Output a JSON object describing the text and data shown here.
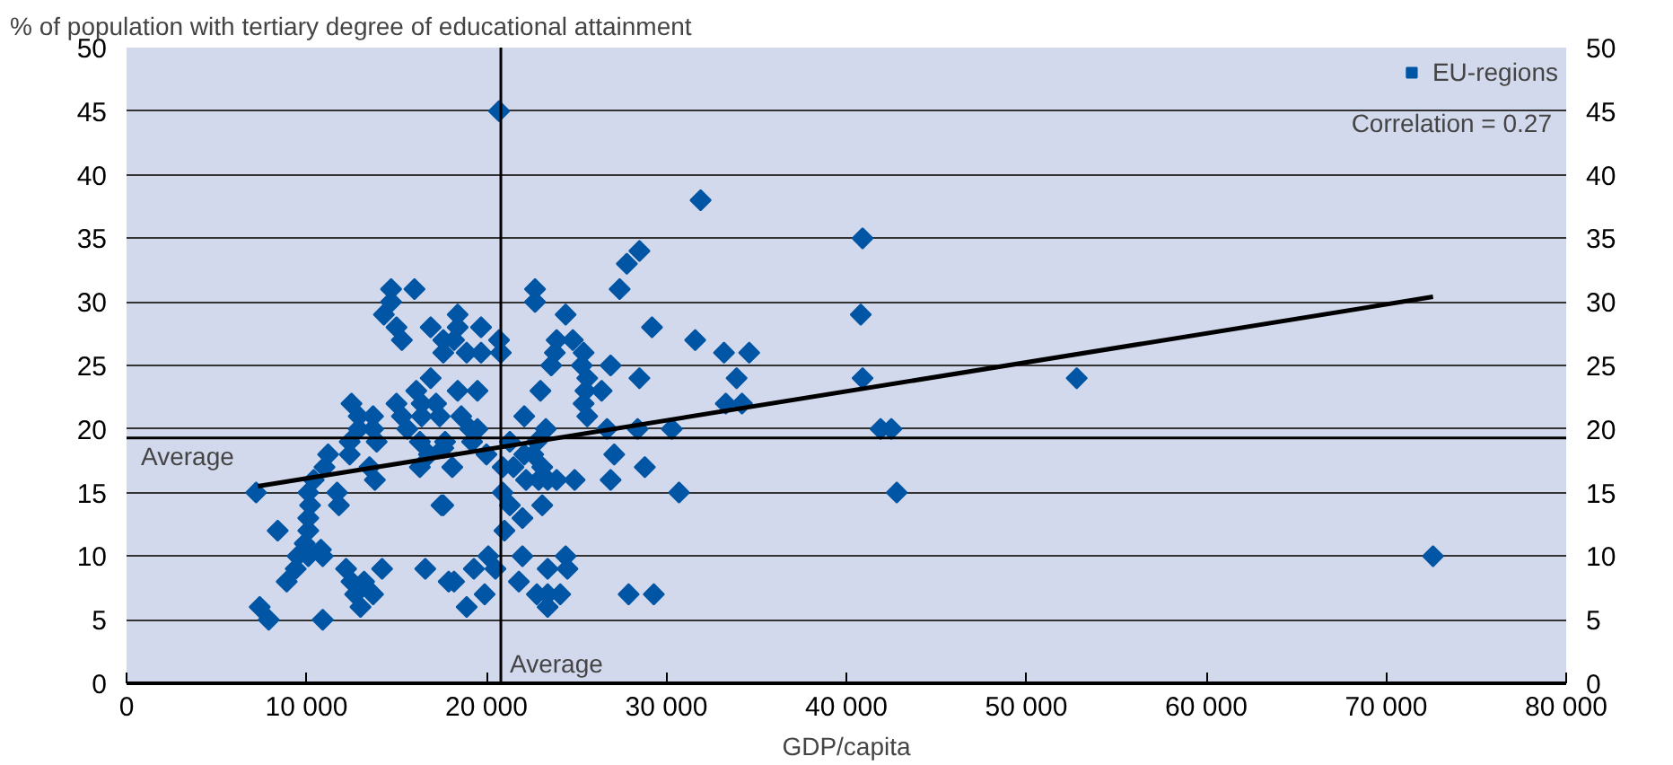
{
  "chart_data": {
    "type": "scatter",
    "ylabel": "% of population with tertiary degree of educational attainment",
    "xlabel": "GDP/capita",
    "xlim": [
      0,
      80000
    ],
    "ylim": [
      0,
      50
    ],
    "y2lim": [
      0,
      50
    ],
    "xticks": [
      0,
      {
        "value": 10000,
        "label": "10 000"
      },
      {
        "value": 20000,
        "label": "20 000"
      },
      {
        "value": 30000,
        "label": "30 000"
      },
      {
        "value": 40000,
        "label": "40 000"
      },
      {
        "value": 50000,
        "label": "50 000"
      },
      {
        "value": 60000,
        "label": "60 000"
      },
      {
        "value": 70000,
        "label": "70 000"
      },
      {
        "value": 80000,
        "label": "80 000"
      }
    ],
    "yticks": [
      0,
      5,
      10,
      15,
      20,
      25,
      30,
      35,
      40,
      45,
      50
    ],
    "y2ticks": [
      0,
      5,
      10,
      15,
      20,
      25,
      30,
      35,
      40,
      45,
      50
    ],
    "grid": "y",
    "legend": "top right",
    "marker": "diamond",
    "annotations": [
      "Correlation = 0.27"
    ],
    "ref_lines": [
      {
        "axis": "y",
        "value": 19.3,
        "label": "Average",
        "color": "#000000"
      },
      {
        "axis": "x",
        "value": 20800,
        "label": "Average",
        "color": "#000000"
      }
    ],
    "series": [
      {
        "name": "EU-regions",
        "color": "#0055a4",
        "x": [
          7200,
          8400,
          7400,
          7900,
          8900,
          9400,
          9500,
          9900,
          10100,
          10100,
          10200,
          10100,
          10400,
          11000,
          11200,
          10900,
          10900,
          10800,
          10100,
          11700,
          11800,
          12200,
          12500,
          12700,
          13000,
          13200,
          13700,
          14200,
          16600,
          12400,
          12400,
          12500,
          12900,
          12900,
          13700,
          13700,
          13900,
          13500,
          13800,
          14300,
          14700,
          14700,
          16000,
          15000,
          15300,
          16900,
          17600,
          17600,
          15000,
          15300,
          15600,
          16100,
          16400,
          16400,
          16900,
          17200,
          17400,
          16300,
          16800,
          16300,
          17600,
          17500,
          17900,
          19500,
          18400,
          18400,
          18400,
          18200,
          18900,
          19700,
          19700,
          20700,
          20800,
          18600,
          19100,
          19500,
          19200,
          20000,
          17700,
          18100,
          17600,
          18200,
          18900,
          19300,
          19900,
          20100,
          20500,
          21300,
          20900,
          21500,
          22100,
          22600,
          22800,
          23300,
          23100,
          23400,
          22200,
          22900,
          23900,
          24900,
          20900,
          21300,
          22000,
          21000,
          23100,
          22100,
          23000,
          22700,
          22700,
          24400,
          23900,
          23800,
          23600,
          24800,
          25400,
          25300,
          25600,
          25500,
          25400,
          25600,
          26400,
          26900,
          26700,
          27100,
          26900,
          28400,
          28800,
          28500,
          27400,
          27800,
          28500,
          29200,
          22000,
          23400,
          24400,
          24500,
          21800,
          22800,
          23400,
          24100,
          23400,
          27900,
          29300,
          20700,
          31900,
          31600,
          33200,
          34600,
          33900,
          33300,
          34200,
          30300,
          30700,
          40900,
          40800,
          40900,
          41900,
          42500,
          42800,
          52800,
          72600
        ],
        "values": [
          15,
          12,
          6,
          5,
          8,
          9,
          10,
          11,
          12,
          13,
          14,
          15,
          16,
          17,
          18,
          5,
          10,
          10.5,
          10,
          15,
          14,
          9,
          8,
          7,
          6,
          8,
          7,
          9,
          9,
          19,
          18,
          22,
          21,
          20,
          21,
          20,
          19,
          17,
          16,
          29,
          31,
          30,
          31,
          28,
          27,
          28,
          27,
          26,
          22,
          21,
          20,
          23,
          22,
          21,
          24,
          22,
          21,
          19,
          18,
          17,
          18.5,
          14,
          8,
          23,
          23,
          29,
          28,
          27,
          26,
          28,
          26,
          27,
          26,
          21,
          20,
          20,
          19,
          18,
          19,
          17,
          14,
          8,
          6,
          9,
          7,
          10,
          9,
          19,
          17,
          17,
          18,
          18,
          19,
          20,
          17,
          16,
          16,
          16,
          16,
          16,
          15,
          14,
          13,
          12,
          14,
          21,
          23,
          31,
          30,
          29,
          27,
          26,
          25,
          27,
          26,
          25,
          24,
          23,
          22,
          21,
          23,
          25,
          20,
          18,
          16,
          20,
          17,
          24,
          31,
          33,
          34,
          28,
          10,
          9,
          10,
          9,
          8,
          7,
          7,
          7,
          6,
          7,
          7,
          45,
          38,
          27,
          26,
          26,
          24,
          22,
          22,
          20,
          15,
          35,
          29,
          24,
          20,
          20,
          15,
          24,
          10
        ]
      },
      {
        "type": "line",
        "marker": "none",
        "color": "#000000",
        "x": [
          7300,
          72600
        ],
        "values": [
          15.5,
          30.4
        ]
      }
    ]
  }
}
